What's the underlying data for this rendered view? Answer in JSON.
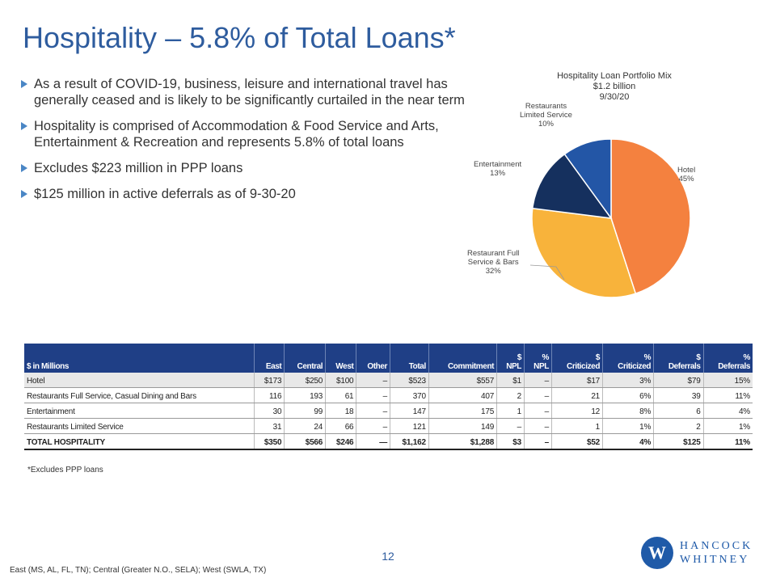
{
  "title": "Hospitality – 5.8% of Total Loans*",
  "bullets": [
    "As a result of COVID-19, business, leisure and international travel has generally ceased and is likely to be significantly curtailed in the near term",
    "Hospitality is comprised of Accommodation & Food Service and Arts, Entertainment & Recreation and represents 5.8% of total loans",
    "Excludes $223 million in PPP loans",
    "$125 million in active deferrals as of 9-30-20"
  ],
  "chart_data": {
    "type": "pie",
    "title": "Hospitality Loan Portfolio Mix",
    "subtitle": "$1.2 billion",
    "date": "9/30/20",
    "slices": [
      {
        "label": "Hotel",
        "value": 45,
        "value_label": "45%",
        "color": "#F4813F"
      },
      {
        "label": "Restaurant Full Service & Bars",
        "value": 32,
        "value_label": "32%",
        "color": "#F8B33B"
      },
      {
        "label": "Entertainment",
        "value": 13,
        "value_label": "13%",
        "color": "#15305E"
      },
      {
        "label": "Restaurants Limited Service",
        "value": 10,
        "value_label": "10%",
        "color": "#2356A6"
      }
    ],
    "label_lines": {
      "hotel": [
        "Hotel",
        "45%"
      ],
      "rest_full": [
        "Restaurant Full",
        "Service & Bars",
        "32%"
      ],
      "entertainment": [
        "Entertainment",
        "13%"
      ],
      "rest_limited": [
        "Restaurants",
        "Limited Service",
        "10%"
      ]
    }
  },
  "table": {
    "headers": [
      [
        "$ in Millions"
      ],
      [
        "East"
      ],
      [
        "Central"
      ],
      [
        "West"
      ],
      [
        "Other"
      ],
      [
        "Total"
      ],
      [
        "Commitment"
      ],
      [
        "$",
        "NPL"
      ],
      [
        "%",
        "NPL"
      ],
      [
        "$",
        "Criticized"
      ],
      [
        "%",
        "Criticized"
      ],
      [
        "$",
        "Deferrals"
      ],
      [
        "%",
        "Deferrals"
      ]
    ],
    "rows": [
      {
        "cells": [
          "Hotel",
          "$173",
          "$250",
          "$100",
          "–",
          "$523",
          "$557",
          "$1",
          "–",
          "$17",
          "3%",
          "$79",
          "15%"
        ]
      },
      {
        "cells": [
          "Restaurants Full Service, Casual Dining and Bars",
          "116",
          "193",
          "61",
          "–",
          "370",
          "407",
          "2",
          "–",
          "21",
          "6%",
          "39",
          "11%"
        ]
      },
      {
        "cells": [
          "Entertainment",
          "30",
          "99",
          "18",
          "–",
          "147",
          "175",
          "1",
          "–",
          "12",
          "8%",
          "6",
          "4%"
        ]
      },
      {
        "cells": [
          "Restaurants Limited Service",
          "31",
          "24",
          "66",
          "–",
          "121",
          "149",
          "–",
          "–",
          "1",
          "1%",
          "2",
          "1%"
        ]
      },
      {
        "cells": [
          "TOTAL HOSPITALITY",
          "$350",
          "$566",
          "$246",
          "—",
          "$1,162",
          "$1,288",
          "$3",
          "–",
          "$52",
          "4%",
          "$125",
          "11%"
        ]
      }
    ]
  },
  "footnote": "*Excludes PPP loans",
  "page_number": "12",
  "source_note": "East (MS, AL, FL, TN); Central (Greater N.O., SELA); West (SWLA, TX)",
  "logo": {
    "mark": "W",
    "line1": "HANCOCK",
    "line2": "WHITNEY",
    "color": "#1F5AA8"
  }
}
